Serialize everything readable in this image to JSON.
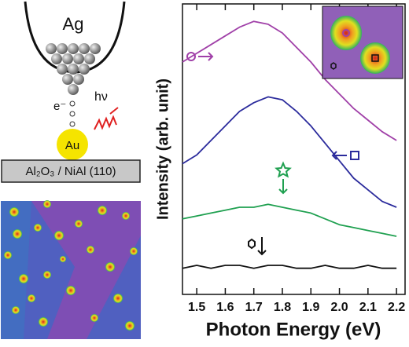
{
  "diagram": {
    "tip_label": "Ag",
    "electron_label": "e⁻",
    "photon_label": "hν",
    "particle_label": "Au",
    "substrate_label": "Al₂O₃ / NiAl (110)"
  },
  "chart_data": {
    "type": "line",
    "x": [
      1.45,
      1.5,
      1.55,
      1.6,
      1.65,
      1.7,
      1.75,
      1.8,
      1.85,
      1.9,
      1.95,
      2.0,
      2.05,
      2.1,
      2.15,
      2.2
    ],
    "series": [
      {
        "color": "#a040a8",
        "values": [
          8.0,
          8.3,
          8.6,
          8.9,
          9.2,
          9.4,
          9.3,
          9.0,
          8.5,
          8.0,
          7.4,
          6.9,
          6.4,
          6.0,
          5.6,
          5.3
        ]
      },
      {
        "color": "#2b2b9c",
        "values": [
          4.5,
          4.8,
          5.3,
          5.8,
          6.3,
          6.6,
          6.8,
          6.7,
          6.3,
          5.8,
          5.2,
          4.6,
          4.0,
          3.6,
          3.2,
          3.0
        ]
      },
      {
        "color": "#1fa050",
        "values": [
          2.6,
          2.7,
          2.8,
          2.9,
          3.0,
          3.0,
          3.1,
          3.0,
          2.9,
          2.8,
          2.6,
          2.4,
          2.3,
          2.2,
          2.1,
          2.0
        ]
      },
      {
        "color": "#111111",
        "values": [
          0.9,
          1.0,
          0.9,
          1.0,
          1.0,
          0.9,
          1.0,
          1.0,
          0.9,
          0.9,
          1.0,
          0.9,
          0.9,
          1.0,
          0.9,
          0.9
        ]
      }
    ],
    "xlim": [
      1.45,
      2.23
    ],
    "ylim": [
      0,
      10
    ],
    "xticks": [
      1.5,
      1.6,
      1.7,
      1.8,
      1.9,
      {
        "value": 2.0,
        "label": "2.0"
      },
      2.1,
      2.2
    ],
    "xlabel": "Photon Energy (eV)",
    "ylabel": "Intensity (arb. unit)"
  }
}
